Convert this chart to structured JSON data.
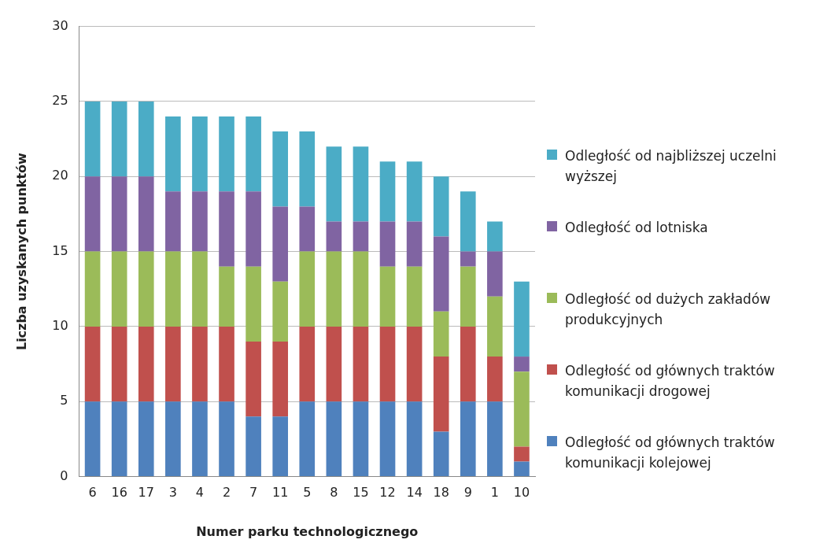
{
  "chart_data": {
    "type": "bar",
    "stacked": true,
    "xlabel": "Numer parku technologicznego",
    "ylabel": "Liczba uzyskanych punktów",
    "categories": [
      "6",
      "16",
      "17",
      "3",
      "4",
      "2",
      "7",
      "11",
      "5",
      "8",
      "15",
      "12",
      "14",
      "18",
      "9",
      "1",
      "10"
    ],
    "series": [
      {
        "name": "Odległość od głównych traktów komunikacji kolejowej",
        "color": "#4f81bd",
        "values": [
          5,
          5,
          5,
          5,
          5,
          5,
          4,
          4,
          5,
          5,
          5,
          5,
          5,
          3,
          5,
          5,
          1
        ]
      },
      {
        "name": "Odległość od głównych traktów komunikacji drogowej",
        "color": "#c0504d",
        "values": [
          5,
          5,
          5,
          5,
          5,
          5,
          5,
          5,
          5,
          5,
          5,
          5,
          5,
          5,
          5,
          3,
          1
        ]
      },
      {
        "name": "Odległość od dużych zakładów produkcyjnych",
        "color": "#9bbb59",
        "values": [
          5,
          5,
          5,
          5,
          5,
          4,
          5,
          4,
          5,
          5,
          5,
          4,
          4,
          3,
          4,
          4,
          5
        ]
      },
      {
        "name": "Odległość od lotniska",
        "color": "#8064a2",
        "values": [
          5,
          5,
          5,
          4,
          4,
          5,
          5,
          5,
          3,
          2,
          2,
          3,
          3,
          5,
          1,
          3,
          1
        ]
      },
      {
        "name": "Odległość od najbliższej uczelni wyższej",
        "color": "#4bacc6",
        "values": [
          5,
          5,
          5,
          5,
          5,
          5,
          5,
          5,
          5,
          5,
          5,
          4,
          4,
          4,
          4,
          2,
          5
        ]
      }
    ],
    "ylim": [
      0,
      30
    ],
    "yticks": [
      0,
      5,
      10,
      15,
      20,
      25,
      30
    ],
    "grid": "y",
    "legend": "right"
  }
}
